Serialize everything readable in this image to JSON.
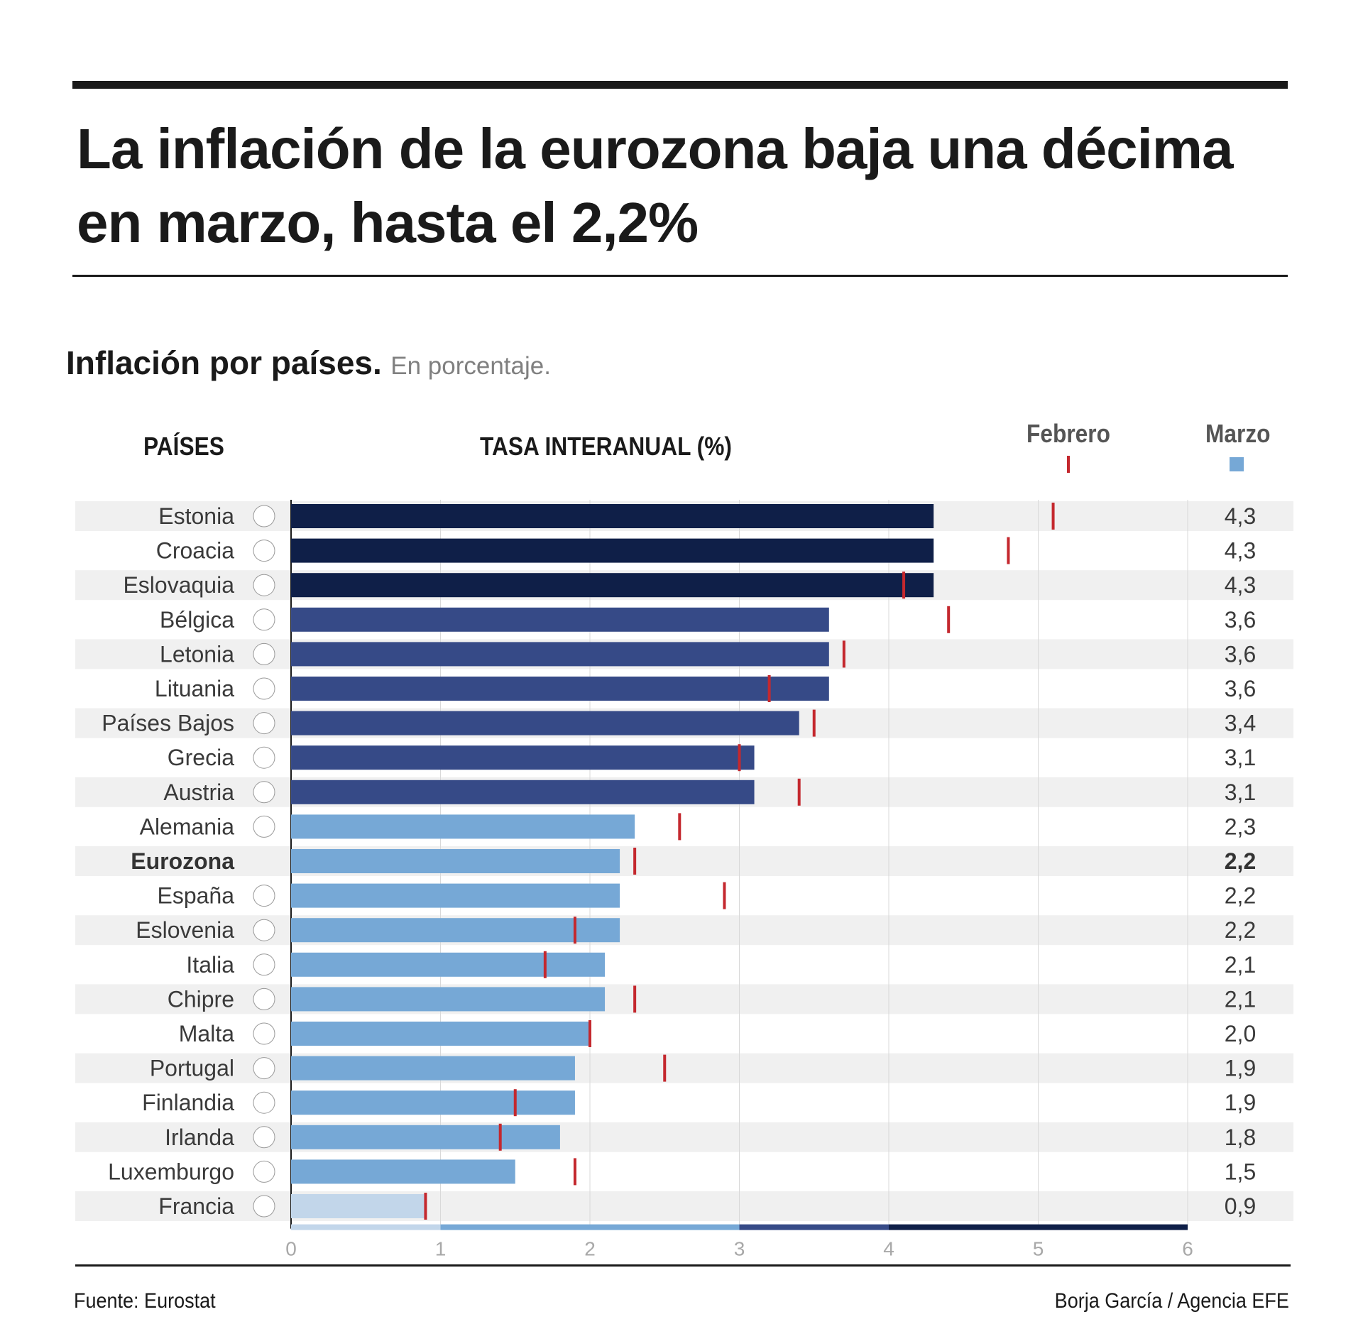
{
  "title": "La inflación de la eurozona baja una décima en marzo, hasta el 2,2%",
  "subtitle": {
    "main": "Inflación por países.",
    "unit": "En porcentaje."
  },
  "headers": {
    "countries": "PAÍSES",
    "rate": "TASA INTERANUAL (%)"
  },
  "legend": {
    "february": "Febrero",
    "march": "Marzo"
  },
  "colors": {
    "darkest": "#0f1f48",
    "dark": "#364a87",
    "medium": "#76a8d6",
    "light": "#c2d6ea",
    "february_marker": "#c4282e",
    "row_stripe": "#f0f0f0",
    "grid": "#d9d9d9",
    "tick_label": "#a8a8a8"
  },
  "chart_data": {
    "type": "bar",
    "orientation": "horizontal",
    "title": "Inflación por países. En porcentaje.",
    "xlabel": "TASA INTERANUAL (%)",
    "xlim": [
      0,
      6
    ],
    "ticks": [
      "0",
      "1",
      "2",
      "3",
      "4",
      "5",
      "6"
    ],
    "color_scale": [
      {
        "from": 0,
        "to": 1,
        "color": "#c2d6ea"
      },
      {
        "from": 1,
        "to": 3,
        "color": "#76a8d6"
      },
      {
        "from": 3,
        "to": 4,
        "color": "#364a87"
      },
      {
        "from": 4,
        "to": 6,
        "color": "#0f1f48"
      }
    ],
    "series": [
      {
        "name": "Marzo",
        "marker": "bar"
      },
      {
        "name": "Febrero",
        "marker": "tick"
      }
    ],
    "rows": [
      {
        "country": "Estonia",
        "flag": "estonia-flag-icon",
        "march": 4.3,
        "label": "4,3",
        "february": 5.1
      },
      {
        "country": "Croacia",
        "flag": "croatia-flag-icon",
        "march": 4.3,
        "label": "4,3",
        "february": 4.8
      },
      {
        "country": "Eslovaquia",
        "flag": "slovakia-flag-icon",
        "march": 4.3,
        "label": "4,3",
        "february": 4.1
      },
      {
        "country": "Bélgica",
        "flag": "belgium-flag-icon",
        "march": 3.6,
        "label": "3,6",
        "february": 4.4
      },
      {
        "country": "Letonia",
        "flag": "latvia-flag-icon",
        "march": 3.6,
        "label": "3,6",
        "february": 3.7
      },
      {
        "country": "Lituania",
        "flag": "lithuania-flag-icon",
        "march": 3.6,
        "label": "3,6",
        "february": 3.2
      },
      {
        "country": "Países Bajos",
        "flag": "netherlands-flag-icon",
        "march": 3.4,
        "label": "3,4",
        "february": 3.5
      },
      {
        "country": "Grecia",
        "flag": "greece-flag-icon",
        "march": 3.1,
        "label": "3,1",
        "february": 3.0
      },
      {
        "country": "Austria",
        "flag": "austria-flag-icon",
        "march": 3.1,
        "label": "3,1",
        "february": 3.4
      },
      {
        "country": "Alemania",
        "flag": "germany-flag-icon",
        "march": 2.3,
        "label": "2,3",
        "february": 2.6
      },
      {
        "country": "Eurozona",
        "flag": "",
        "march": 2.2,
        "label": "2,2",
        "february": 2.3,
        "bold": true
      },
      {
        "country": "España",
        "flag": "spain-flag-icon",
        "march": 2.2,
        "label": "2,2",
        "february": 2.9
      },
      {
        "country": "Eslovenia",
        "flag": "slovenia-flag-icon",
        "march": 2.2,
        "label": "2,2",
        "february": 1.9
      },
      {
        "country": "Italia",
        "flag": "italy-flag-icon",
        "march": 2.1,
        "label": "2,1",
        "february": 1.7
      },
      {
        "country": "Chipre",
        "flag": "cyprus-flag-icon",
        "march": 2.1,
        "label": "2,1",
        "february": 2.3
      },
      {
        "country": "Malta",
        "flag": "malta-flag-icon",
        "march": 2.0,
        "label": "2,0",
        "february": 2.0
      },
      {
        "country": "Portugal",
        "flag": "portugal-flag-icon",
        "march": 1.9,
        "label": "1,9",
        "february": 2.5
      },
      {
        "country": "Finlandia",
        "flag": "finland-flag-icon",
        "march": 1.9,
        "label": "1,9",
        "february": 1.5
      },
      {
        "country": "Irlanda",
        "flag": "ireland-flag-icon",
        "march": 1.8,
        "label": "1,8",
        "february": 1.4
      },
      {
        "country": "Luxemburgo",
        "flag": "luxembourg-flag-icon",
        "march": 1.5,
        "label": "1,5",
        "february": 1.9
      },
      {
        "country": "Francia",
        "flag": "france-flag-icon",
        "march": 0.9,
        "label": "0,9",
        "february": 0.9
      }
    ]
  },
  "footer": {
    "source": "Fuente: Eurostat",
    "credit": "Borja García / Agencia EFE"
  }
}
